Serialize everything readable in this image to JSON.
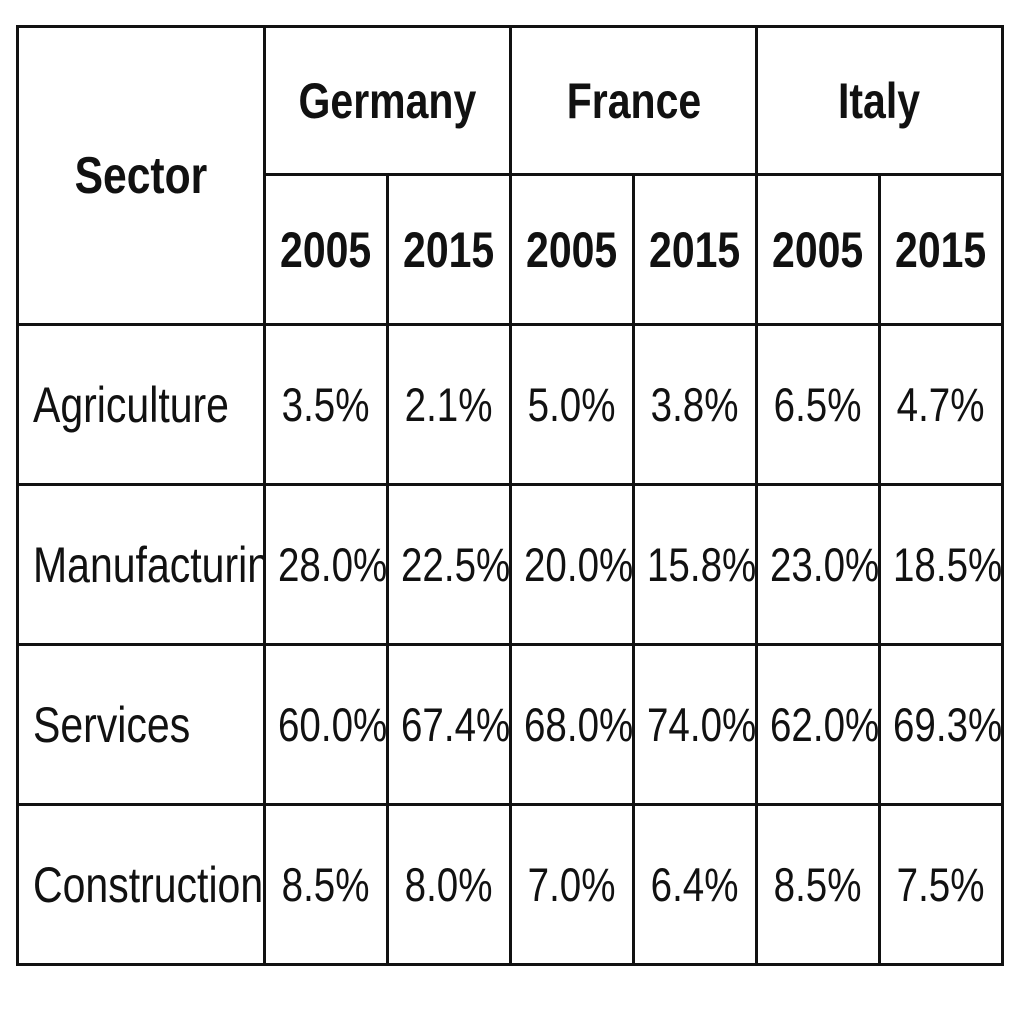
{
  "chart_data": {
    "type": "table",
    "corner_label": "Sector",
    "countries": [
      "Germany",
      "France",
      "Italy"
    ],
    "years": [
      "2005",
      "2015"
    ],
    "rows": [
      {
        "label": "Agriculture",
        "values": [
          "3.5%",
          "2.1%",
          "5.0%",
          "3.8%",
          "6.5%",
          "4.7%"
        ]
      },
      {
        "label": "Manufacturing",
        "values": [
          "28.0%",
          "22.5%",
          "20.0%",
          "15.8%",
          "23.0%",
          "18.5%"
        ]
      },
      {
        "label": "Services",
        "values": [
          "60.0%",
          "67.4%",
          "68.0%",
          "74.0%",
          "62.0%",
          "69.3%"
        ]
      },
      {
        "label": "Construction",
        "values": [
          "8.5%",
          "8.0%",
          "7.0%",
          "6.4%",
          "8.5%",
          "7.5%"
        ]
      }
    ],
    "colors": {
      "border": "#111111",
      "text": "#111111",
      "background": "#ffffff"
    }
  }
}
